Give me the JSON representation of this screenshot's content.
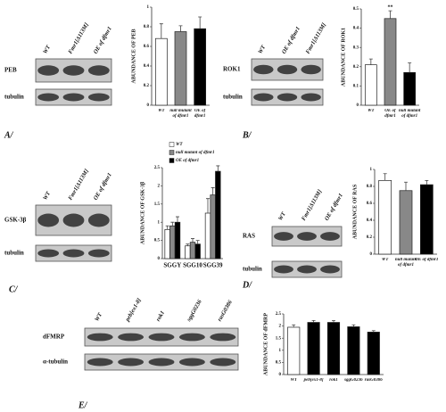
{
  "chart_data": [
    {
      "type": "bar",
      "y_label": "ABUNDANCE OF PEB",
      "categories": [
        "WT",
        "null mutant of dfmr1",
        "OE of dfmr1"
      ],
      "values": [
        0.68,
        0.75,
        0.78
      ],
      "errors": [
        0.15,
        0.06,
        0.12
      ],
      "colors": [
        "#ffffff",
        "#888888",
        "#000000"
      ],
      "ylim": [
        0,
        1
      ],
      "yticks": [
        0,
        0.2,
        0.4,
        0.6,
        0.8,
        1
      ]
    },
    {
      "type": "bar",
      "y_label": "ABUNDANCE OF ROK1",
      "categories": [
        "WT",
        "OE of dfmr1",
        "null mutant of dfmr1"
      ],
      "values": [
        0.21,
        0.45,
        0.17
      ],
      "errors": [
        0.03,
        0.04,
        0.05
      ],
      "colors": [
        "#ffffff",
        "#888888",
        "#000000"
      ],
      "ylim": [
        0,
        0.5
      ],
      "yticks": [
        0,
        0.1,
        0.2,
        0.3,
        0.4,
        0.5
      ],
      "annotation": "**"
    },
    {
      "type": "grouped-bar",
      "y_label": "ABUNDANCE OF GSK-3β",
      "categories": [
        "SGGY",
        "SGG10",
        "SGG39"
      ],
      "series": [
        {
          "name": "WT",
          "color": "#ffffff",
          "values": [
            0.8,
            0.35,
            1.25
          ],
          "errors": [
            0.1,
            0.05,
            0.4
          ]
        },
        {
          "name": "null mutant of dfmr1",
          "color": "#888888",
          "values": [
            0.9,
            0.45,
            1.75
          ],
          "errors": [
            0.1,
            0.1,
            0.2
          ]
        },
        {
          "name": "OE of dfmr1",
          "color": "#000000",
          "values": [
            1.0,
            0.4,
            2.4
          ],
          "errors": [
            0.15,
            0.1,
            0.15
          ]
        }
      ],
      "ylim": [
        0,
        2.5
      ],
      "yticks": [
        0,
        0.5,
        1,
        1.5,
        2,
        2.5
      ]
    },
    {
      "type": "bar",
      "y_label": "ABUNDANCE OF RAS",
      "categories": [
        "WT",
        "null mutant of dfmr1",
        "OE of dfmr1"
      ],
      "values": [
        0.87,
        0.75,
        0.82
      ],
      "errors": [
        0.08,
        0.1,
        0.05
      ],
      "colors": [
        "#ffffff",
        "#888888",
        "#000000"
      ],
      "ylim": [
        0,
        1
      ],
      "yticks": [
        0,
        0.2,
        0.4,
        0.6,
        0.8,
        1
      ]
    },
    {
      "type": "bar",
      "y_label": "ABUNDANCE OF dFMRP",
      "categories": [
        "WT",
        "peb[ex1-8]",
        "rok1",
        "sggG0236",
        "rasG0386"
      ],
      "values": [
        1.95,
        2.15,
        2.15,
        1.97,
        1.75
      ],
      "errors": [
        0.1,
        0.08,
        0.08,
        0.08,
        0.06
      ],
      "colors": [
        "#ffffff",
        "#000000",
        "#000000",
        "#000000",
        "#000000"
      ],
      "ylim": [
        0,
        2.5
      ],
      "yticks": [
        0,
        0.5,
        1,
        1.5,
        2,
        2.5
      ]
    }
  ],
  "blots": [
    {
      "panel": "A/",
      "lanes": [
        "WT",
        "Fmr1[Δ113M]",
        "OE of dfmr1"
      ],
      "rows": [
        "PEB",
        "tubulin"
      ]
    },
    {
      "panel": "B/",
      "lanes": [
        "WT",
        "OE of dfmr1",
        "Fmr1[Δ113M]"
      ],
      "rows": [
        "ROK1",
        "tubulin"
      ]
    },
    {
      "panel": "C/",
      "lanes": [
        "WT",
        "Fmr1[Δ113M]",
        "OE of dfmr1"
      ],
      "rows": [
        "GSK-3β",
        "tubulin"
      ]
    },
    {
      "panel": "D/",
      "lanes": [
        "WT",
        "Fmr1[Δ113M]",
        "OE of dfmr1"
      ],
      "rows": [
        "RAS",
        "tubulin"
      ]
    },
    {
      "panel": "E/",
      "lanes": [
        "WT",
        "peb[ex1-8]",
        "rok1",
        "sggG0236",
        "rasG0386"
      ],
      "rows": [
        "dFMRP",
        "α-tubulin"
      ]
    }
  ]
}
